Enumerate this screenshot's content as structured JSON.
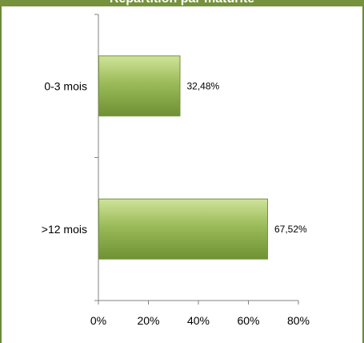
{
  "chart_data": {
    "type": "bar",
    "orientation": "horizontal",
    "title": "Répartition par maturité",
    "categories": [
      "0-3 mois",
      ">12 mois"
    ],
    "values": [
      32.48,
      67.52
    ],
    "data_labels": [
      "32,48%",
      "67,52%"
    ],
    "xlim": [
      0,
      80
    ],
    "x_ticks": [
      "0%",
      "20%",
      "40%",
      "60%",
      "80%"
    ],
    "grid": false,
    "legend": "none",
    "colors": {
      "bar": "#9bbb59",
      "bar_dark": "#76923c",
      "title_bg": "#76923c",
      "axis": "#808080"
    }
  }
}
